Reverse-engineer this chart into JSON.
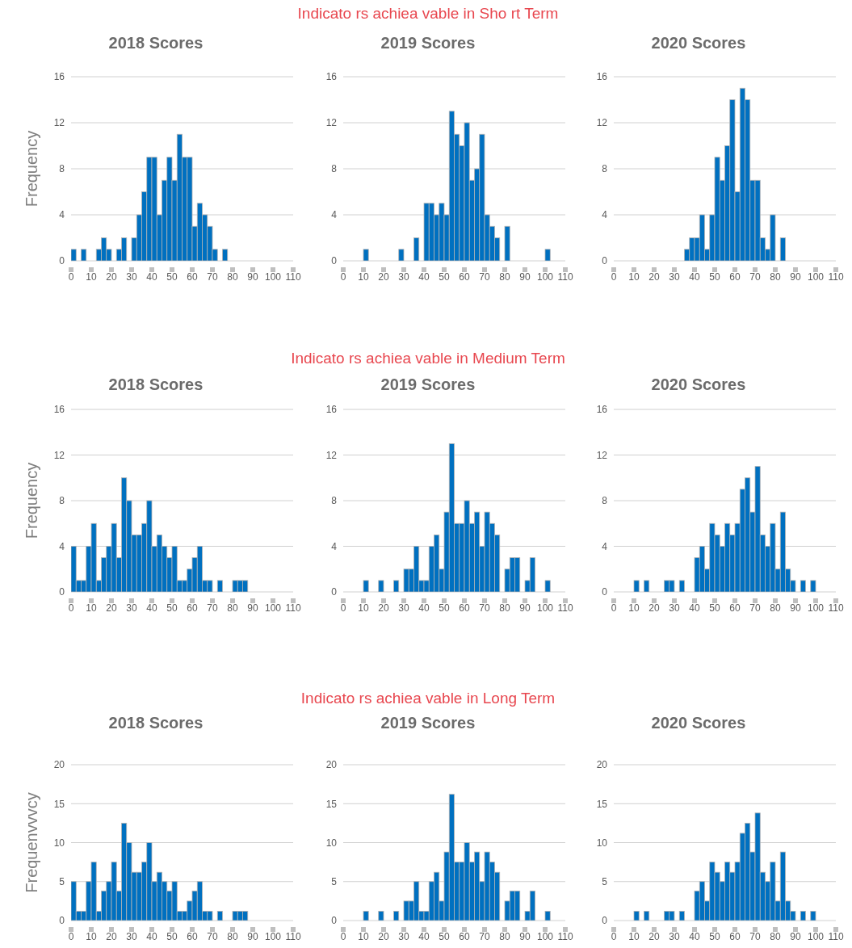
{
  "chart_data": [
    {
      "type": "histogram",
      "title": "2018 Scores",
      "ylabel": "Frequency",
      "color": "#0070c0",
      "grid": "y",
      "xlim": [
        0,
        110
      ],
      "xticks": [
        0,
        10,
        20,
        30,
        40,
        50,
        60,
        70,
        80,
        90,
        100,
        110
      ],
      "ylim": [
        0,
        16
      ],
      "yticks": [
        0,
        4,
        8,
        12,
        16
      ],
      "bins": [
        0,
        2.5,
        5,
        7.5,
        10,
        12.5,
        15,
        17.5,
        20,
        22.5,
        25,
        27.5,
        30,
        32.5,
        35,
        37.5,
        40,
        42.5,
        45,
        47.5,
        50,
        52.5,
        55,
        57.5,
        60,
        62.5,
        65,
        67.5,
        70,
        72.5,
        75,
        77.5,
        80,
        82.5,
        85,
        87.5,
        90,
        92.5,
        95,
        97.5,
        100,
        102.5,
        105,
        107.5,
        110
      ],
      "values": [
        1,
        0,
        1,
        0,
        0,
        1,
        2,
        1,
        0,
        1,
        2,
        0,
        2,
        4,
        6,
        9,
        9,
        4,
        7,
        9,
        7,
        11,
        9,
        9,
        3,
        5,
        4,
        3,
        1,
        0,
        1,
        0,
        0,
        0,
        0,
        0,
        0,
        0,
        0,
        0,
        0,
        0,
        0,
        0
      ]
    },
    {
      "type": "histogram",
      "title": "2019 Scores",
      "color": "#0070c0",
      "grid": "y",
      "xlim": [
        0,
        110
      ],
      "xticks": [
        0,
        10,
        20,
        30,
        40,
        50,
        60,
        70,
        80,
        90,
        100,
        110
      ],
      "ylim": [
        0,
        16
      ],
      "yticks": [
        0,
        4,
        8,
        12,
        16
      ],
      "annotations": [
        "Indicato rs achiea vable in Sho rt Term"
      ],
      "bins": [
        0,
        2.5,
        5,
        7.5,
        10,
        12.5,
        15,
        17.5,
        20,
        22.5,
        25,
        27.5,
        30,
        32.5,
        35,
        37.5,
        40,
        42.5,
        45,
        47.5,
        50,
        52.5,
        55,
        57.5,
        60,
        62.5,
        65,
        67.5,
        70,
        72.5,
        75,
        77.5,
        80,
        82.5,
        85,
        87.5,
        90,
        92.5,
        95,
        97.5,
        100,
        102.5,
        105,
        107.5,
        110
      ],
      "values": [
        0,
        0,
        0,
        0,
        1,
        0,
        0,
        0,
        0,
        0,
        0,
        1,
        0,
        0,
        2,
        0,
        5,
        5,
        4,
        5,
        4,
        13,
        11,
        10,
        12,
        7,
        8,
        11,
        4,
        3,
        2,
        0,
        3,
        0,
        0,
        0,
        0,
        0,
        0,
        0,
        1,
        0,
        0,
        0
      ]
    },
    {
      "type": "histogram",
      "title": "2020 Scores",
      "color": "#0070c0",
      "grid": "y",
      "xlim": [
        0,
        110
      ],
      "xticks": [
        0,
        10,
        20,
        30,
        40,
        50,
        60,
        70,
        80,
        90,
        100,
        110
      ],
      "ylim": [
        0,
        16
      ],
      "yticks": [
        0,
        4,
        8,
        12,
        16
      ],
      "bins": [
        0,
        2.5,
        5,
        7.5,
        10,
        12.5,
        15,
        17.5,
        20,
        22.5,
        25,
        27.5,
        30,
        32.5,
        35,
        37.5,
        40,
        42.5,
        45,
        47.5,
        50,
        52.5,
        55,
        57.5,
        60,
        62.5,
        65,
        67.5,
        70,
        72.5,
        75,
        77.5,
        80,
        82.5,
        85,
        87.5,
        90,
        92.5,
        95,
        97.5,
        100,
        102.5,
        105,
        107.5,
        110
      ],
      "values": [
        0,
        0,
        0,
        0,
        0,
        0,
        0,
        0,
        0,
        0,
        0,
        0,
        0,
        0,
        1,
        2,
        2,
        4,
        1,
        4,
        9,
        7,
        10,
        14,
        6,
        15,
        14,
        7,
        7,
        2,
        1,
        4,
        0,
        2,
        0,
        0,
        0,
        0,
        0,
        0,
        0,
        0,
        0,
        0
      ]
    },
    {
      "type": "histogram",
      "title": "2018 Scores",
      "ylabel": "Frequency",
      "color": "#0070c0",
      "grid": "y",
      "xlim": [
        0,
        110
      ],
      "xticks": [
        0,
        10,
        20,
        30,
        40,
        50,
        60,
        70,
        80,
        90,
        100,
        110
      ],
      "ylim": [
        0,
        16
      ],
      "yticks": [
        0,
        4,
        8,
        12,
        16
      ],
      "bins": [
        0,
        2.5,
        5,
        7.5,
        10,
        12.5,
        15,
        17.5,
        20,
        22.5,
        25,
        27.5,
        30,
        32.5,
        35,
        37.5,
        40,
        42.5,
        45,
        47.5,
        50,
        52.5,
        55,
        57.5,
        60,
        62.5,
        65,
        67.5,
        70,
        72.5,
        75,
        77.5,
        80,
        82.5,
        85,
        87.5,
        90,
        92.5,
        95,
        97.5,
        100,
        102.5,
        105,
        107.5,
        110
      ],
      "values": [
        4,
        1,
        1,
        4,
        6,
        1,
        3,
        4,
        6,
        3,
        10,
        8,
        5,
        5,
        6,
        8,
        4,
        5,
        4,
        3,
        4,
        1,
        1,
        2,
        3,
        4,
        1,
        1,
        0,
        1,
        0,
        0,
        1,
        1,
        1,
        0,
        0,
        0,
        0,
        0,
        0,
        0,
        0,
        0
      ]
    },
    {
      "type": "histogram",
      "title": "2019 Scores",
      "color": "#0070c0",
      "grid": "y",
      "xlim": [
        0,
        110
      ],
      "xticks": [
        0,
        10,
        20,
        30,
        40,
        50,
        60,
        70,
        80,
        90,
        100,
        110
      ],
      "ylim": [
        0,
        16
      ],
      "yticks": [
        0,
        4,
        8,
        12,
        16
      ],
      "annotations": [
        "Indicato rs achiea vable in Medium Term"
      ],
      "bins": [
        0,
        2.5,
        5,
        7.5,
        10,
        12.5,
        15,
        17.5,
        20,
        22.5,
        25,
        27.5,
        30,
        32.5,
        35,
        37.5,
        40,
        42.5,
        45,
        47.5,
        50,
        52.5,
        55,
        57.5,
        60,
        62.5,
        65,
        67.5,
        70,
        72.5,
        75,
        77.5,
        80,
        82.5,
        85,
        87.5,
        90,
        92.5,
        95,
        97.5,
        100,
        102.5,
        105,
        107.5,
        110
      ],
      "values": [
        0,
        0,
        0,
        0,
        1,
        0,
        0,
        1,
        0,
        0,
        1,
        0,
        2,
        2,
        4,
        1,
        1,
        4,
        5,
        2,
        7,
        13,
        6,
        6,
        8,
        6,
        7,
        4,
        7,
        6,
        5,
        0,
        2,
        3,
        3,
        0,
        1,
        3,
        0,
        0,
        1,
        0,
        0,
        0
      ]
    },
    {
      "type": "histogram",
      "title": "2020 Scores",
      "color": "#0070c0",
      "grid": "y",
      "xlim": [
        0,
        110
      ],
      "xticks": [
        0,
        10,
        20,
        30,
        40,
        50,
        60,
        70,
        80,
        90,
        100,
        110
      ],
      "ylim": [
        0,
        16
      ],
      "yticks": [
        0,
        4,
        8,
        12,
        16
      ],
      "bins": [
        0,
        2.5,
        5,
        7.5,
        10,
        12.5,
        15,
        17.5,
        20,
        22.5,
        25,
        27.5,
        30,
        32.5,
        35,
        37.5,
        40,
        42.5,
        45,
        47.5,
        50,
        52.5,
        55,
        57.5,
        60,
        62.5,
        65,
        67.5,
        70,
        72.5,
        75,
        77.5,
        80,
        82.5,
        85,
        87.5,
        90,
        92.5,
        95,
        97.5,
        100,
        102.5,
        105,
        107.5,
        110
      ],
      "values": [
        0,
        0,
        0,
        0,
        1,
        0,
        1,
        0,
        0,
        0,
        1,
        1,
        0,
        1,
        0,
        0,
        3,
        4,
        2,
        6,
        5,
        4,
        6,
        5,
        6,
        9,
        10,
        7,
        11,
        5,
        4,
        6,
        2,
        7,
        2,
        1,
        0,
        1,
        0,
        1,
        0,
        0,
        0,
        0
      ]
    },
    {
      "type": "histogram",
      "title": "2018 Scores",
      "ylabel": "Frequenvvvcy",
      "color": "#0070c0",
      "grid": "y",
      "xlim": [
        0,
        110
      ],
      "xticks": [
        0,
        10,
        20,
        30,
        40,
        50,
        60,
        70,
        80,
        90,
        100,
        110
      ],
      "ylim": [
        0,
        20
      ],
      "yticks": [
        0,
        5,
        10,
        15,
        20
      ],
      "bins": [
        0,
        2.5,
        5,
        7.5,
        10,
        12.5,
        15,
        17.5,
        20,
        22.5,
        25,
        27.5,
        30,
        32.5,
        35,
        37.5,
        40,
        42.5,
        45,
        47.5,
        50,
        52.5,
        55,
        57.5,
        60,
        62.5,
        65,
        67.5,
        70,
        72.5,
        75,
        77.5,
        80,
        82.5,
        85,
        87.5,
        90,
        92.5,
        95,
        97.5,
        100,
        102.5,
        105,
        107.5,
        110
      ],
      "values": [
        5,
        1.2,
        1.2,
        5,
        7.5,
        1.2,
        3.8,
        5,
        7.5,
        3.8,
        12.5,
        10,
        6.2,
        6.2,
        7.5,
        10,
        5,
        6.2,
        5,
        3.8,
        5,
        1.2,
        1.2,
        2.5,
        3.8,
        5,
        1.2,
        1.2,
        0,
        1.2,
        0,
        0,
        1.2,
        1.2,
        1.2,
        0,
        0,
        0,
        0,
        0,
        0,
        0,
        0,
        0
      ]
    },
    {
      "type": "histogram",
      "title": "2019 Scores",
      "color": "#0070c0",
      "grid": "y",
      "xlim": [
        0,
        110
      ],
      "xticks": [
        0,
        10,
        20,
        30,
        40,
        50,
        60,
        70,
        80,
        90,
        100,
        110
      ],
      "ylim": [
        0,
        20
      ],
      "yticks": [
        0,
        5,
        10,
        15,
        20
      ],
      "annotations": [
        "Indicato rs achiea vable in Long Term"
      ],
      "bins": [
        0,
        2.5,
        5,
        7.5,
        10,
        12.5,
        15,
        17.5,
        20,
        22.5,
        25,
        27.5,
        30,
        32.5,
        35,
        37.5,
        40,
        42.5,
        45,
        47.5,
        50,
        52.5,
        55,
        57.5,
        60,
        62.5,
        65,
        67.5,
        70,
        72.5,
        75,
        77.5,
        80,
        82.5,
        85,
        87.5,
        90,
        92.5,
        95,
        97.5,
        100,
        102.5,
        105,
        107.5,
        110
      ],
      "values": [
        0,
        0,
        0,
        0,
        1.2,
        0,
        0,
        1.2,
        0,
        0,
        1.2,
        0,
        2.5,
        2.5,
        5,
        1.2,
        1.2,
        5,
        6.2,
        2.5,
        8.8,
        16.2,
        7.5,
        7.5,
        10,
        7.5,
        8.8,
        5,
        8.8,
        7.5,
        6.2,
        0,
        2.5,
        3.8,
        3.8,
        0,
        1.2,
        3.8,
        0,
        0,
        1.2,
        0,
        0,
        0
      ]
    },
    {
      "type": "histogram",
      "title": "2020 Scores",
      "color": "#0070c0",
      "grid": "y",
      "xlim": [
        0,
        110
      ],
      "xticks": [
        0,
        10,
        20,
        30,
        40,
        50,
        60,
        70,
        80,
        90,
        100,
        110
      ],
      "ylim": [
        0,
        20
      ],
      "yticks": [
        0,
        5,
        10,
        15,
        20
      ],
      "bins": [
        0,
        2.5,
        5,
        7.5,
        10,
        12.5,
        15,
        17.5,
        20,
        22.5,
        25,
        27.5,
        30,
        32.5,
        35,
        37.5,
        40,
        42.5,
        45,
        47.5,
        50,
        52.5,
        55,
        57.5,
        60,
        62.5,
        65,
        67.5,
        70,
        72.5,
        75,
        77.5,
        80,
        82.5,
        85,
        87.5,
        90,
        92.5,
        95,
        97.5,
        100,
        102.5,
        105,
        107.5,
        110
      ],
      "values": [
        0,
        0,
        0,
        0,
        1.2,
        0,
        1.2,
        0,
        0,
        0,
        1.2,
        1.2,
        0,
        1.2,
        0,
        0,
        3.8,
        5,
        2.5,
        7.5,
        6.2,
        5,
        7.5,
        6.2,
        7.5,
        11.2,
        12.5,
        8.8,
        13.8,
        6.2,
        5,
        7.5,
        2.5,
        8.8,
        2.5,
        1.2,
        0,
        1.2,
        0,
        1.2,
        0,
        0,
        0,
        0
      ]
    }
  ]
}
